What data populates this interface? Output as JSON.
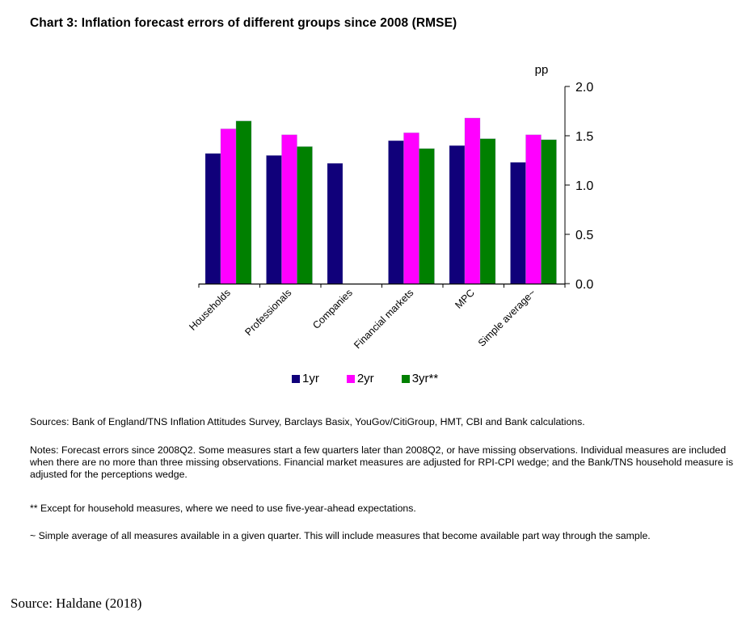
{
  "chart_data": {
    "type": "bar",
    "title": "Chart 3:  Inflation forecast errors of different groups since 2008 (RMSE)",
    "xlabel": "",
    "ylabel": "pp",
    "ylim": [
      0,
      2.0
    ],
    "yticks": [
      0.0,
      0.5,
      1.0,
      1.5,
      2.0
    ],
    "ytick_labels": [
      "0.0",
      "0.5",
      "1.0",
      "1.5",
      "2.0"
    ],
    "y_axis_side": "right",
    "grid": false,
    "legend_position": "bottom-center",
    "categories": [
      "Households",
      "Professionals",
      "Companies",
      "Financial markets",
      "MPC",
      "Simple average~"
    ],
    "series": [
      {
        "name": "1yr",
        "color": "#10007a",
        "values": [
          1.32,
          1.3,
          1.22,
          1.45,
          1.4,
          1.23
        ]
      },
      {
        "name": "2yr",
        "color": "#ff00ff",
        "values": [
          1.57,
          1.51,
          null,
          1.53,
          1.68,
          1.51
        ]
      },
      {
        "name": "3yr**",
        "color": "#008000",
        "values": [
          1.65,
          1.39,
          null,
          1.37,
          1.47,
          1.46
        ]
      }
    ]
  },
  "notes": {
    "sources": "Sources:  Bank of England/TNS Inflation Attitudes Survey, Barclays Basix, YouGov/CitiGroup, HMT, CBI and Bank calculations.",
    "notes": "Notes: Forecast errors since 2008Q2.  Some measures start a few quarters later than 2008Q2, or have missing observations.  Individual measures are included when there are no more than three missing observations.  Financial market measures are adjusted for RPI-CPI wedge;  and the Bank/TNS household measure is adjusted for the perceptions wedge.",
    "double_star": "** Except for household measures, where we need to use five-year-ahead expectations.",
    "tilde": "~ Simple average of all measures available in a given quarter. This will include measures that become available part way through the sample."
  },
  "source_caption": "Source:  Haldane (2018)"
}
